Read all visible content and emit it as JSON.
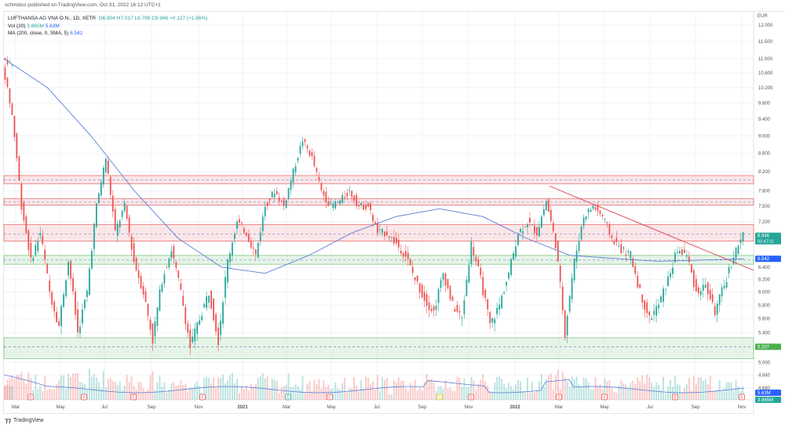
{
  "publisher_line": "schmidco published on TradingView.com, Oct 31, 2022 16:12 UTC+1",
  "legend": {
    "symbol": "LUFTHANSA AG VNA O.N., 1D, XETR",
    "open": "O6.804",
    "high": "H7.017",
    "low": "L6.799",
    "close": "C6.946",
    "change": "+0.127 (+1.86%)",
    "vol_label": "Vol (20)",
    "vol_value": "3.865M",
    "vol_ma": "5.63M",
    "ma_label": "MA (200, close, 0, SMA, 5)",
    "ma_value": "6.542"
  },
  "footer": {
    "logo": "TradingView"
  },
  "colors": {
    "up": "#26a69a",
    "down": "#ef5350",
    "ma": "#5b7fd6",
    "zone_red": "#f7c7cc",
    "zone_green": "#c8e6c9",
    "trendline": "#e0505e"
  },
  "chart_data": {
    "type": "candlestick",
    "currency": "EUR",
    "y_scale": "log",
    "ylim": [
      4.6,
      12.3
    ],
    "y_ticks": [
      "12.000",
      "11.500",
      "11.000",
      "10.600",
      "10.200",
      "9.800",
      "9.400",
      "9.000",
      "8.600",
      "8.200",
      "7.800",
      "7.500",
      "7.200",
      "6.400",
      "6.200",
      "6.000",
      "5.800",
      "5.600",
      "5.400",
      "5.000",
      "4.840",
      "4.680"
    ],
    "x_ticks": [
      "Mar",
      "May",
      "Jul",
      "Sep",
      "Nov",
      "2021",
      "Mar",
      "May",
      "Jul",
      "Sep",
      "Nov",
      "2022",
      "Mar",
      "May",
      "Jul",
      "Sep",
      "Nov"
    ],
    "grid": true,
    "closes": [
      10.8,
      9.5,
      7.5,
      6.5,
      7.0,
      6.0,
      5.5,
      6.5,
      5.4,
      6.0,
      7.5,
      8.5,
      7.0,
      7.5,
      6.5,
      6.0,
      5.3,
      6.2,
      6.7,
      6.0,
      5.2,
      5.6,
      6.0,
      5.3,
      6.5,
      7.2,
      7.0,
      6.6,
      7.5,
      7.8,
      7.5,
      8.2,
      8.9,
      8.5,
      7.8,
      7.5,
      7.6,
      7.8,
      7.5,
      7.5,
      7.0,
      7.0,
      6.8,
      6.6,
      6.2,
      5.9,
      5.7,
      6.3,
      5.8,
      5.6,
      6.8,
      6.2,
      5.5,
      5.8,
      6.3,
      7.0,
      7.2,
      7.0,
      7.6,
      6.8,
      5.4,
      6.5,
      7.3,
      7.5,
      7.3,
      6.9,
      6.7,
      6.6,
      6.0,
      5.6,
      5.8,
      6.2,
      6.7,
      6.6,
      6.0,
      6.1,
      5.7,
      6.1,
      6.6,
      6.946
    ],
    "ma_200": [
      11.0,
      10.2,
      9.0,
      7.8,
      6.9,
      6.4,
      6.3,
      6.6,
      7.0,
      7.3,
      7.45,
      7.3,
      6.9,
      6.6,
      6.55,
      6.5,
      6.52,
      6.542
    ],
    "zones": [
      {
        "color": "red",
        "low": 7.95,
        "high": 8.12,
        "mid": 8.03
      },
      {
        "color": "red",
        "low": 7.52,
        "high": 7.65,
        "mid": 7.58
      },
      {
        "color": "red",
        "low": 6.85,
        "high": 7.15,
        "mid": 6.98
      },
      {
        "color": "green",
        "low": 6.45,
        "high": 6.6,
        "mid": 6.52
      },
      {
        "color": "green",
        "low": 5.05,
        "high": 5.33,
        "mid": 5.207
      }
    ],
    "trendline": {
      "from": 7.9,
      "to": 6.35
    },
    "price_labels": [
      {
        "text": "6.946",
        "sub": "02:47:11",
        "price": 6.946,
        "color": "#26a69a"
      },
      {
        "text": "6.542",
        "price": 6.542,
        "color": "#2962ff"
      },
      {
        "text": "5.207",
        "price": 5.207,
        "color": "#4caf50"
      }
    ],
    "volume_labels": [
      {
        "text": "5.63M",
        "color": "#2962ff"
      },
      {
        "text": "3.865M",
        "color": "#26a69a"
      }
    ],
    "earnings_markers": [
      "E",
      "E",
      "E",
      "E",
      "E",
      "E",
      "S",
      "E",
      "E",
      "E",
      "E",
      "E"
    ]
  }
}
